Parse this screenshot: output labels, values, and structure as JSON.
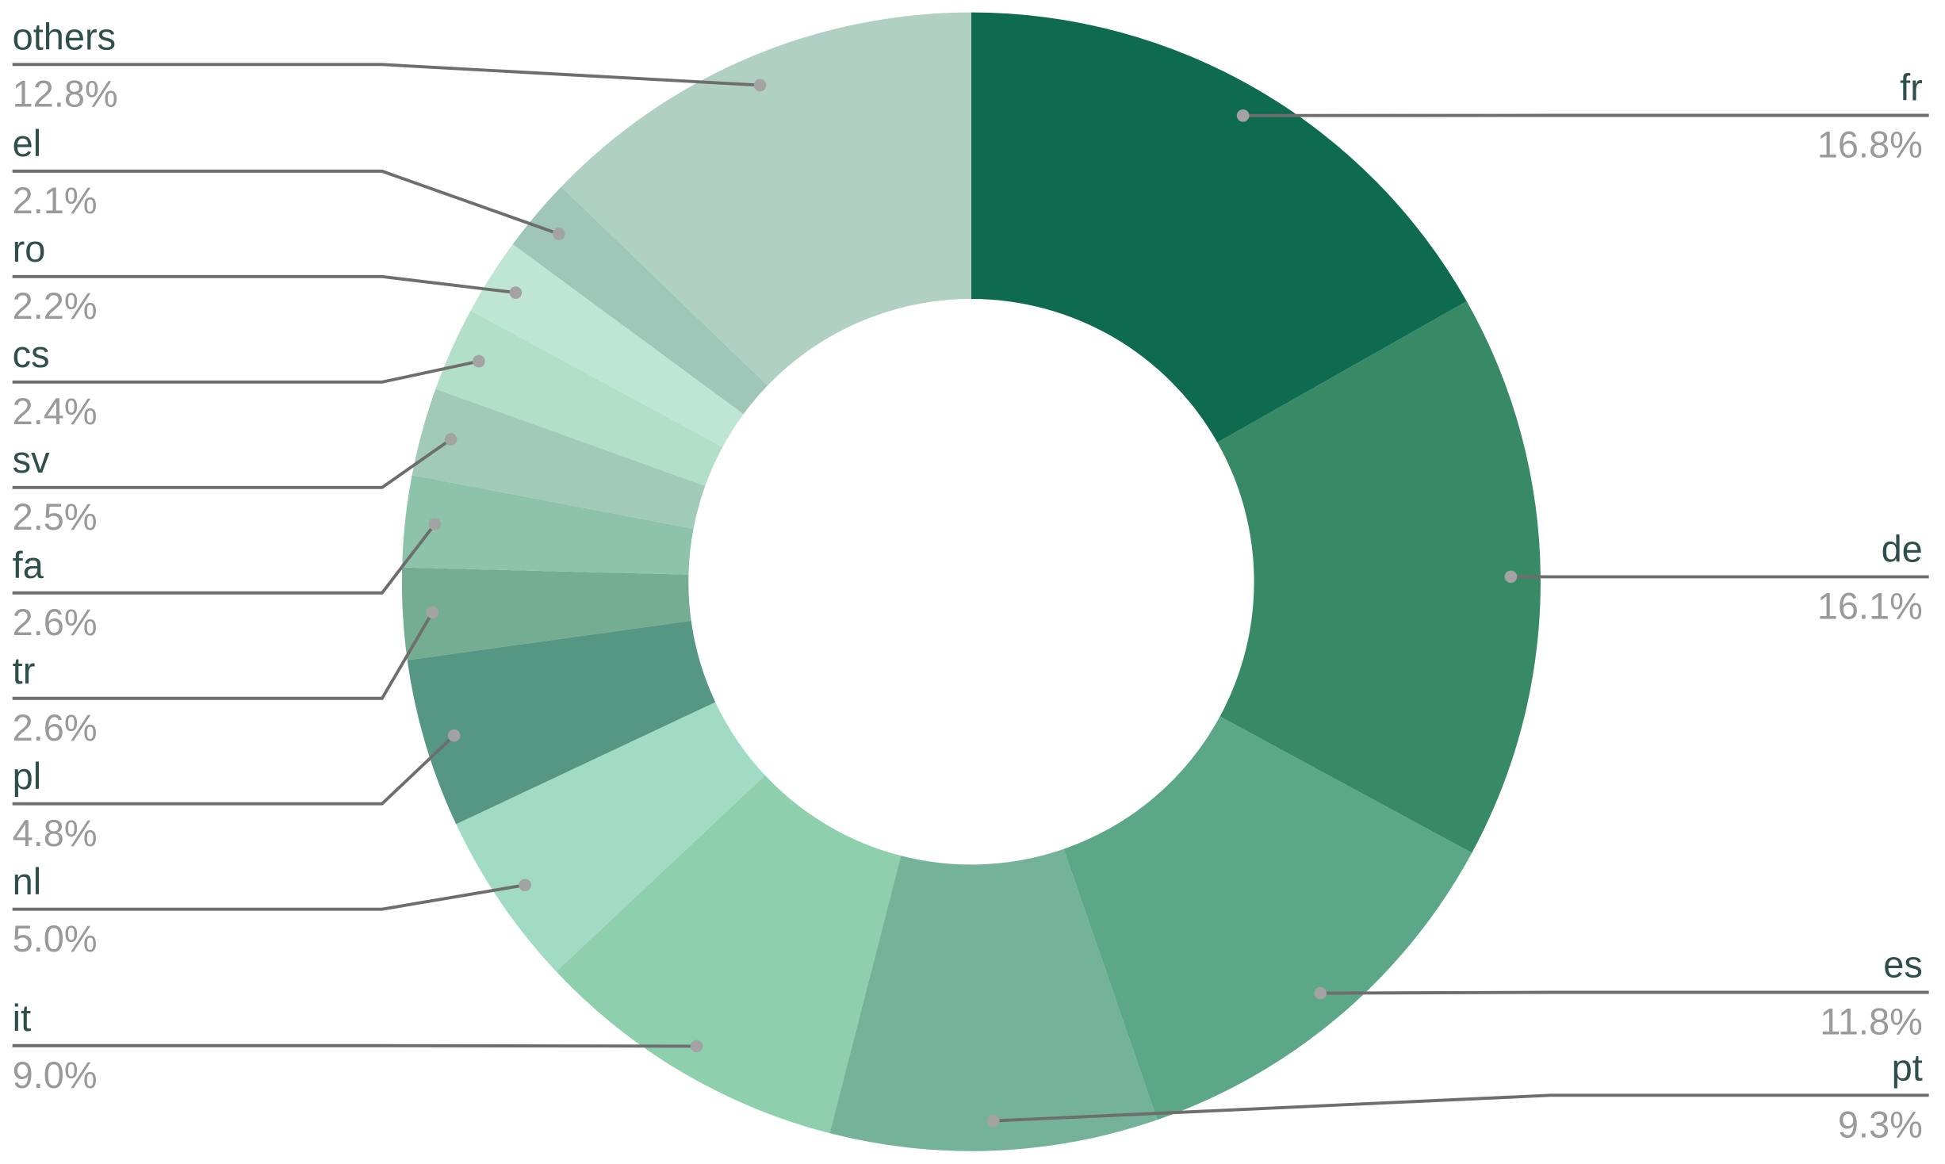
{
  "chart_data": {
    "type": "donut",
    "categories": [
      "fr",
      "de",
      "es",
      "pt",
      "it",
      "nl",
      "pl",
      "tr",
      "fa",
      "sv",
      "cs",
      "ro",
      "el",
      "others"
    ],
    "values": [
      16.8,
      16.1,
      11.8,
      9.3,
      9.0,
      5.0,
      4.8,
      2.6,
      2.6,
      2.5,
      2.4,
      2.2,
      2.1,
      12.8
    ],
    "value_labels": [
      "16.8%",
      "16.1%",
      "11.8%",
      "9.3%",
      "9.0%",
      "5.0%",
      "4.8%",
      "2.6%",
      "2.6%",
      "2.5%",
      "2.4%",
      "2.2%",
      "2.1%",
      "12.8%"
    ],
    "colors": [
      "#0f6b50",
      "#388a66",
      "#5da789",
      "#74b39a",
      "#8ecfad",
      "#a1dbc3",
      "#559783",
      "#74ad92",
      "#8dc2ab",
      "#a1cbb8",
      "#b1dfc8",
      "#bfe6d5",
      "#a0c6b9",
      "#b0d0c3"
    ]
  }
}
